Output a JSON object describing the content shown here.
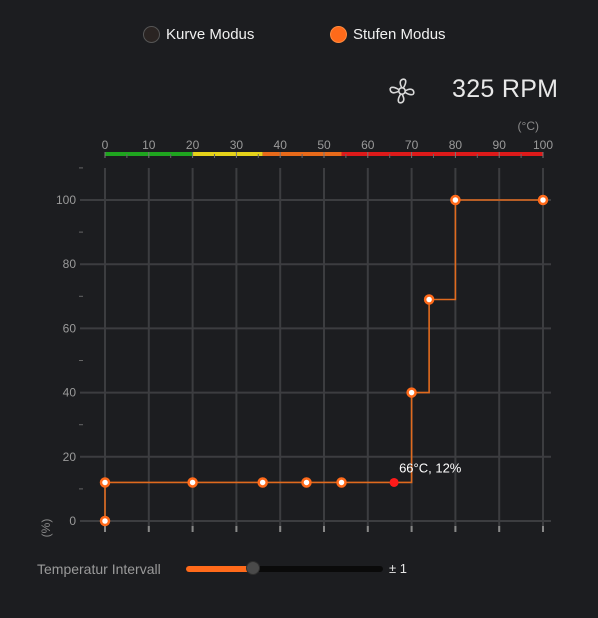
{
  "modes": {
    "curve_label": "Kurve Modus",
    "step_label": "Stufen Modus",
    "selected": "step"
  },
  "fan": {
    "icon": "fan-icon",
    "rpm_text": "325 RPM"
  },
  "colors": {
    "accent": "#ff6a1a",
    "line": "#e06a1e",
    "current_point": "#ff1a1a",
    "zone_green": "#1fa51f",
    "zone_yellow": "#e5d21a",
    "zone_orange": "#e86a1a",
    "zone_red": "#dd1a1a"
  },
  "chart_data": {
    "type": "line",
    "step": true,
    "x_unit_label": "(°C)",
    "y_unit_label": "(%)",
    "xlim": [
      0,
      100
    ],
    "ylim": [
      0,
      100
    ],
    "x_ticks": [
      0,
      10,
      20,
      30,
      40,
      50,
      60,
      70,
      80,
      90,
      100
    ],
    "y_ticks": [
      0,
      20,
      40,
      60,
      80,
      100
    ],
    "grid": true,
    "points": [
      {
        "x": 0,
        "y": 0
      },
      {
        "x": 0,
        "y": 12
      },
      {
        "x": 20,
        "y": 12
      },
      {
        "x": 36,
        "y": 12
      },
      {
        "x": 46,
        "y": 12
      },
      {
        "x": 54,
        "y": 12
      },
      {
        "x": 70,
        "y": 40
      },
      {
        "x": 74,
        "y": 69
      },
      {
        "x": 80,
        "y": 100
      },
      {
        "x": 100,
        "y": 100
      }
    ],
    "current": {
      "x": 66,
      "y": 12,
      "label": "66°C, 12%"
    },
    "temp_zones": [
      {
        "from": 0,
        "to": 20,
        "color": "green"
      },
      {
        "from": 20,
        "to": 36,
        "color": "yellow"
      },
      {
        "from": 36,
        "to": 54,
        "color": "orange"
      },
      {
        "from": 54,
        "to": 100,
        "color": "red"
      }
    ]
  },
  "interval": {
    "label": "Temperatur Intervall",
    "value_text": "± 1",
    "fraction": 0.34
  }
}
